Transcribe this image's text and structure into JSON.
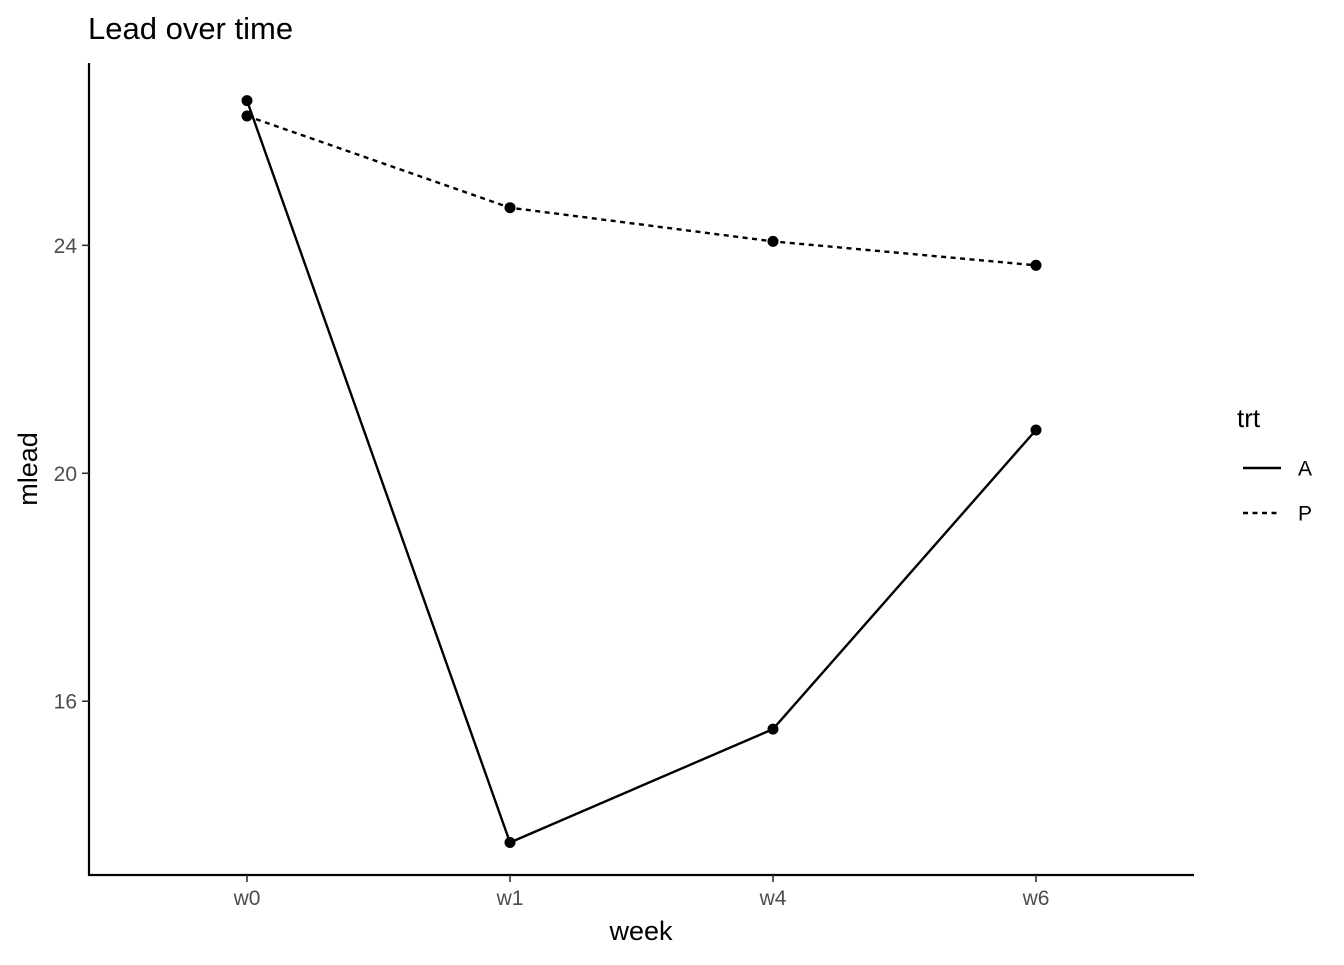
{
  "chart_data": {
    "type": "line",
    "title": "Lead over time",
    "xlabel": "week",
    "ylabel": "mlead",
    "categories": [
      "w0",
      "w1",
      "w4",
      "w6"
    ],
    "y_ticks": [
      16,
      20,
      24
    ],
    "ylim": [
      12.95,
      27.2
    ],
    "grid": false,
    "legend": {
      "title": "trt",
      "placement": "right",
      "entries": [
        {
          "label": "A",
          "linetype": "solid"
        },
        {
          "label": "P",
          "linetype": "dashed"
        }
      ]
    },
    "series": [
      {
        "name": "A",
        "linetype": "solid",
        "values": [
          26.54,
          13.52,
          15.51,
          20.76
        ]
      },
      {
        "name": "P",
        "linetype": "dashed",
        "values": [
          26.27,
          24.66,
          24.07,
          23.65
        ]
      }
    ],
    "colors": {
      "line": "#000000",
      "point": "#000000",
      "axis": "#000000",
      "tick_text": "#4d4d4d"
    }
  }
}
